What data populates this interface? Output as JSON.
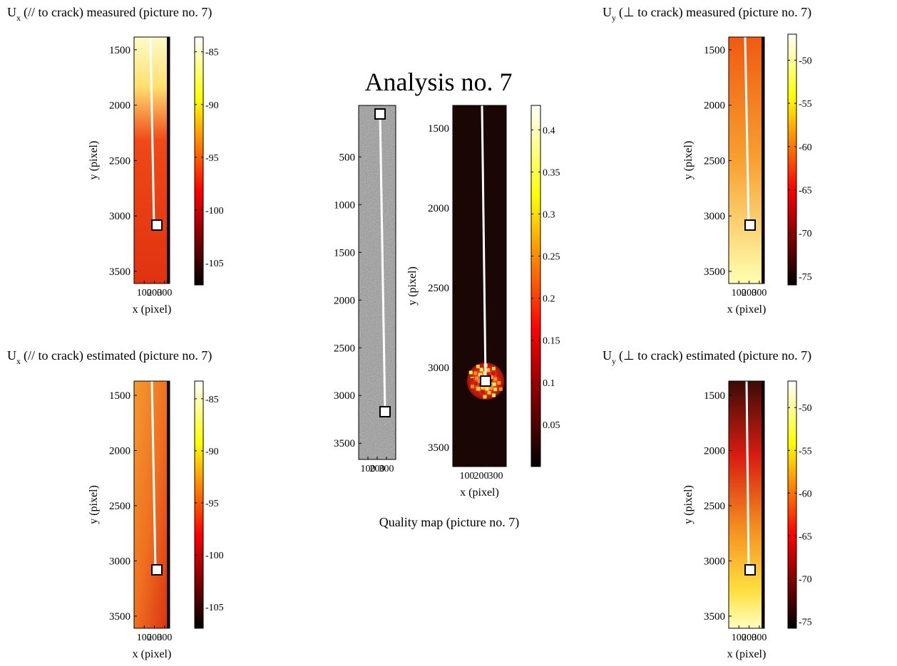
{
  "chart_data": [
    {
      "type": "heatmap",
      "title_symbol": "U",
      "title_subscript": "x",
      "title": "(// to crack) measured (picture no. 7)",
      "xlabel": "x (pixel)",
      "ylabel": "y (pixel)",
      "xlim": [
        0,
        350
      ],
      "ylim": [
        1385,
        3610
      ],
      "yreverse": true,
      "xticks": [
        100,
        200,
        300
      ],
      "yticks": [
        1500,
        2000,
        2500,
        3000,
        3500
      ],
      "colorbar": {
        "clim": [
          -107.1,
          -83.6
        ],
        "ticks": [
          -85,
          -90,
          -95,
          -100,
          -105
        ]
      }
    },
    {
      "type": "heatmap",
      "title_symbol": "U",
      "title_subscript": "x",
      "title": "(// to crack) estimated (picture no. 7)",
      "xlabel": "x (pixel)",
      "ylabel": "y (pixel)",
      "xlim": [
        0,
        350
      ],
      "ylim": [
        1371,
        3610
      ],
      "yreverse": true,
      "xticks": [
        100,
        200,
        300
      ],
      "yticks": [
        1500,
        2000,
        2500,
        3000,
        3500
      ],
      "colorbar": {
        "clim": [
          -107.05,
          -83.3
        ],
        "ticks": [
          -85,
          -90,
          -95,
          -100,
          -105
        ]
      }
    },
    {
      "type": "heatmap",
      "title_symbol": "U",
      "title_subscript": "y",
      "title": "(⊥ to crack) measured (picture no. 7)",
      "xlabel": "x (pixel)",
      "ylabel": "y (pixel)",
      "xlim": [
        0,
        350
      ],
      "ylim": [
        1385,
        3610
      ],
      "yreverse": true,
      "xticks": [
        100,
        200,
        300
      ],
      "yticks": [
        1500,
        2000,
        2500,
        3000,
        3500
      ],
      "colorbar": {
        "clim": [
          -76,
          -47
        ],
        "ticks": [
          -50,
          -55,
          -60,
          -65,
          -70,
          -75
        ]
      }
    },
    {
      "type": "heatmap",
      "title_symbol": "U",
      "title_subscript": "y",
      "title": "(⊥ to crack) estimated (picture no. 7)",
      "xlabel": "x (pixel)",
      "ylabel": "y (pixel)",
      "xlim": [
        0,
        350
      ],
      "ylim": [
        1371,
        3610
      ],
      "yreverse": true,
      "xticks": [
        100,
        200,
        300
      ],
      "yticks": [
        1500,
        2000,
        2500,
        3000,
        3500
      ],
      "colorbar": {
        "clim": [
          -75.8,
          -46.9
        ],
        "ticks": [
          -50,
          -55,
          -60,
          -65,
          -70,
          -75
        ]
      }
    },
    {
      "type": "image",
      "title": "Analysis no. 7",
      "xlim": [
        0,
        400
      ],
      "ylim": [
        -40,
        3670
      ],
      "yreverse": true,
      "xticks": [
        100,
        200,
        300
      ],
      "yticks": [
        500,
        1000,
        1500,
        2000,
        2500,
        3000,
        3500
      ]
    },
    {
      "type": "heatmap",
      "caption": "Quality map (picture no. 7)",
      "xlabel": "x (pixel)",
      "ylabel": "y (pixel)",
      "xlim": [
        0,
        375
      ],
      "ylim": [
        1357,
        3620
      ],
      "yreverse": true,
      "xticks": [
        100,
        200,
        300
      ],
      "yticks": [
        1500,
        2000,
        2500,
        3000,
        3500
      ],
      "colorbar": {
        "clim": [
          0,
          0.429
        ],
        "ticks": [
          0.05,
          0.1,
          0.15,
          0.2,
          0.25,
          0.3,
          0.35,
          0.4
        ]
      }
    }
  ]
}
